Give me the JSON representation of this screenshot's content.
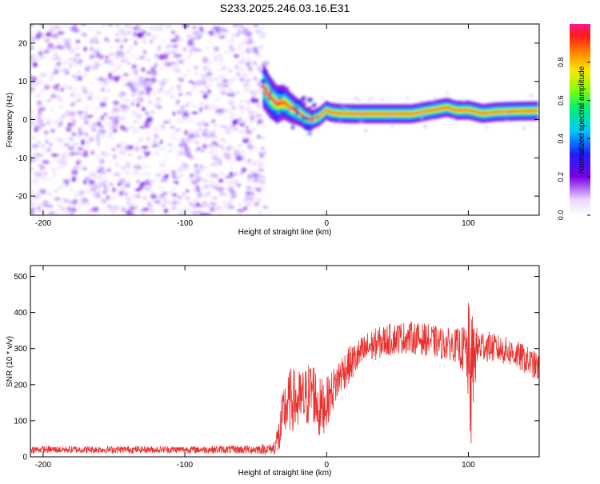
{
  "title": "S233.2025.246.03.16.E31",
  "chart_data": [
    {
      "type": "heatmap",
      "xlabel": "Height of straight line (km)",
      "ylabel": "Frequency (Hz)",
      "xlim": [
        -209,
        150
      ],
      "ylim": [
        -25,
        25
      ],
      "xticks": [
        -200,
        -100,
        0,
        100
      ],
      "yticks": [
        -20,
        -10,
        0,
        10,
        20
      ],
      "noise_region_x": [
        -209,
        -45
      ],
      "ridge": {
        "x": [
          -45,
          -40,
          -35,
          -30,
          -25,
          -20,
          -15,
          -10,
          -5,
          0,
          2,
          5,
          10,
          20,
          40,
          60,
          75,
          85,
          92,
          100,
          110,
          120,
          135,
          150
        ],
        "freq": [
          9,
          6,
          4,
          4.5,
          3,
          2,
          0.5,
          0,
          0.8,
          2.5,
          2,
          1.8,
          1.6,
          1.5,
          1.5,
          1.5,
          2.5,
          3.2,
          2.4,
          2.5,
          1.6,
          2.0,
          2.2,
          2.3
        ]
      },
      "colorbar": {
        "label": "Normalized spectral amplitude",
        "min": 0.0,
        "max": 1.0,
        "ticks": [
          "0.0",
          "0.2",
          "0.4",
          "0.6",
          "0.8"
        ],
        "tick_values": [
          0,
          0.2,
          0.4,
          0.6,
          0.8
        ]
      }
    },
    {
      "type": "line",
      "xlabel": "Height of straight line (km)",
      "ylabel": "SNR (10 * v/v)",
      "xlim": [
        -209,
        150
      ],
      "ylim": [
        0,
        530
      ],
      "xticks": [
        -200,
        -100,
        0,
        100
      ],
      "yticks": [
        0,
        100,
        200,
        300,
        400,
        500
      ],
      "color": "#e8302e",
      "envelope": {
        "x": [
          -209,
          -150,
          -100,
          -60,
          -38,
          -33,
          -30,
          -25,
          -20,
          -15,
          -10,
          -5,
          0,
          5,
          10,
          20,
          30,
          40,
          50,
          60,
          70,
          80,
          90,
          95,
          98,
          100,
          102,
          104,
          106,
          110,
          120,
          130,
          140,
          150
        ],
        "mean": [
          20,
          20,
          20,
          20,
          22,
          60,
          130,
          160,
          150,
          160,
          190,
          130,
          150,
          190,
          230,
          270,
          305,
          320,
          330,
          330,
          325,
          315,
          310,
          300,
          290,
          280,
          200,
          280,
          300,
          310,
          300,
          290,
          270,
          245
        ],
        "spread": [
          10,
          10,
          10,
          12,
          15,
          60,
          80,
          90,
          90,
          90,
          90,
          90,
          70,
          60,
          55,
          50,
          45,
          45,
          45,
          45,
          45,
          45,
          45,
          60,
          80,
          150,
          200,
          120,
          60,
          45,
          40,
          40,
          40,
          40
        ]
      }
    }
  ]
}
